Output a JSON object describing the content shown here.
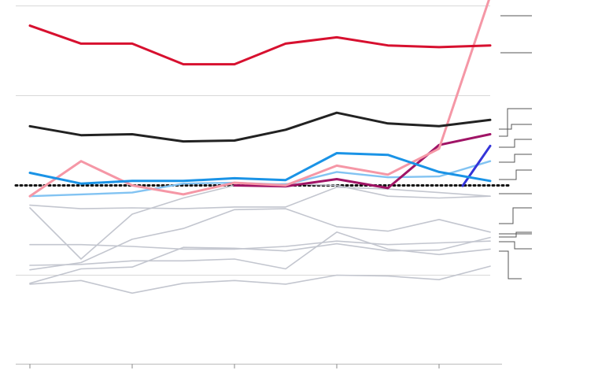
{
  "chart_data": {
    "type": "line",
    "x": [
      0,
      1,
      2,
      3,
      4,
      5,
      6,
      7,
      8,
      9
    ],
    "ylim": [
      -10,
      40
    ],
    "grid": true,
    "reference_line": 0,
    "colors": {
      "red": "#d7102f",
      "black": "#222222",
      "blue": "#1a93e6",
      "pink": "#f597a6",
      "purple": "#a01466",
      "indigo": "#3434d8",
      "light_blue": "#82c3f2",
      "gray": "#c3c6cf",
      "dotted": "#111111"
    },
    "series": [
      {
        "color": "gray",
        "values": [
          -2.5,
          -8.2,
          -3.2,
          -1.4,
          0.0,
          0.2,
          0.0,
          -1.2,
          -1.4,
          -1.2
        ]
      },
      {
        "color": "gray",
        "values": [
          -2.2,
          -2.6,
          -2.5,
          -2.6,
          -2.4,
          -2.4,
          -0.2,
          -0.4,
          -0.8,
          -1.2
        ]
      },
      {
        "color": "gray",
        "values": [
          -6.6,
          -6.6,
          -6.8,
          -7.1,
          -7.1,
          -6.8,
          -6.2,
          -6.6,
          -6.4,
          -6.2
        ]
      },
      {
        "color": "gray",
        "values": [
          -9.4,
          -8.6,
          -6.0,
          -4.8,
          -2.7,
          -2.6,
          -4.6,
          -5.1,
          -3.8,
          -5.2
        ]
      },
      {
        "color": "gray",
        "values": [
          -10.9,
          -9.3,
          -9.1,
          -6.9,
          -7.0,
          -7.3,
          -6.5,
          -7.3,
          -7.2,
          -5.8
        ]
      },
      {
        "color": "gray",
        "values": [
          -8.9,
          -8.8,
          -8.4,
          -8.4,
          -8.2,
          -9.3,
          -5.2,
          -7.1,
          -7.7,
          -7.1
        ]
      },
      {
        "color": "gray",
        "values": [
          -11.0,
          -10.6,
          -12.0,
          -10.9,
          -10.6,
          -11.0,
          -10.0,
          -10.1,
          -10.5,
          -9.0
        ]
      },
      {
        "color": "light_blue",
        "values": [
          -1.2,
          -1.0,
          -0.8,
          0.2,
          0.3,
          0.1,
          1.5,
          0.9,
          1.0,
          2.7
        ]
      },
      {
        "color": "indigo",
        "values": [
          null,
          null,
          null,
          null,
          null,
          null,
          null,
          null,
          null,
          4.4
        ]
      },
      {
        "color": "purple",
        "values": [
          null,
          null,
          null,
          null,
          0.0,
          -0.1,
          0.7,
          -0.3,
          4.5,
          5.7
        ]
      },
      {
        "color": "pink",
        "values": [
          -1.2,
          2.7,
          0.0,
          -1.0,
          0.3,
          0.0,
          2.2,
          1.2,
          4.1,
          21.1
        ]
      },
      {
        "color": "blue",
        "values": [
          1.4,
          0.2,
          0.5,
          0.5,
          0.8,
          0.6,
          3.6,
          3.4,
          1.5,
          0.5
        ]
      },
      {
        "color": "black",
        "values": [
          6.6,
          5.6,
          5.7,
          4.9,
          5.0,
          6.2,
          8.1,
          6.9,
          6.6,
          7.3
        ]
      },
      {
        "color": "red",
        "values": [
          17.8,
          15.8,
          15.8,
          13.5,
          13.5,
          15.8,
          16.5,
          15.6,
          15.4,
          15.6
        ]
      }
    ]
  }
}
